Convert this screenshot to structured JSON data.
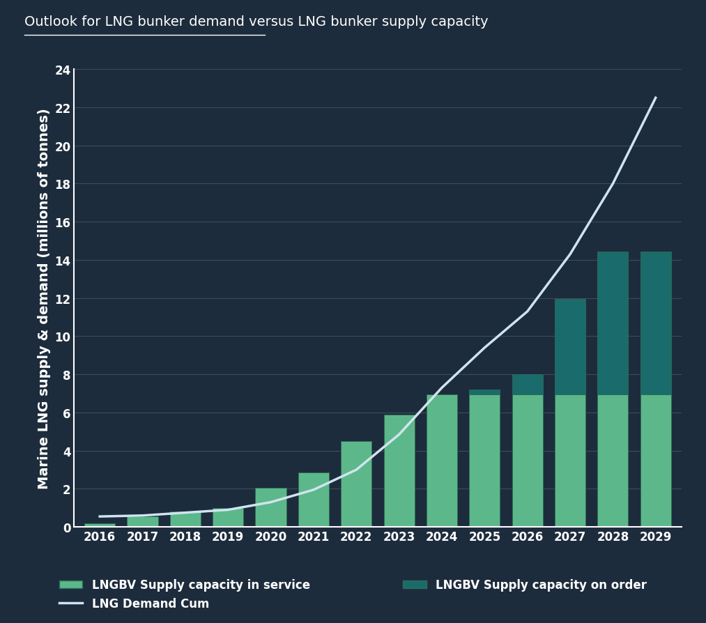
{
  "chart_data": {
    "type": "bar",
    "title": "Outlook for LNG bunker demand versus LNG bunker supply capacity",
    "y_label": "Marine LNG supply & demand (millions of tonnes)",
    "categories": [
      "2016",
      "2017",
      "2018",
      "2019",
      "2020",
      "2021",
      "2022",
      "2023",
      "2024",
      "2025",
      "2026",
      "2027",
      "2028",
      "2029"
    ],
    "stacked": true,
    "series": [
      {
        "name": "LNGBV Supply capacity in service",
        "type": "bar",
        "color": "#5cb88a",
        "values": [
          0.2,
          0.55,
          0.8,
          1.0,
          2.05,
          2.85,
          4.5,
          5.9,
          6.95,
          6.95,
          6.95,
          6.95,
          6.95,
          6.95
        ]
      },
      {
        "name": "LNGBV Supply capacity on order",
        "type": "bar",
        "color": "#1a6b6b",
        "values": [
          0,
          0,
          0,
          0,
          0,
          0,
          0,
          0,
          0,
          0.25,
          1.05,
          5.0,
          7.5,
          7.5
        ]
      },
      {
        "name": "LNG Demand Cum",
        "type": "line",
        "color": "#d0e4f0",
        "line_style": "solid",
        "values": [
          0.55,
          0.6,
          0.75,
          0.9,
          1.3,
          1.95,
          3.0,
          4.85,
          7.3,
          9.4,
          11.3,
          14.3,
          18.0,
          22.5
        ]
      }
    ],
    "ylim": [
      0,
      24
    ],
    "yticks": [
      0,
      2,
      4,
      6,
      8,
      10,
      12,
      14,
      16,
      18,
      20,
      22,
      24
    ],
    "grid": true,
    "legend": "lower center"
  }
}
